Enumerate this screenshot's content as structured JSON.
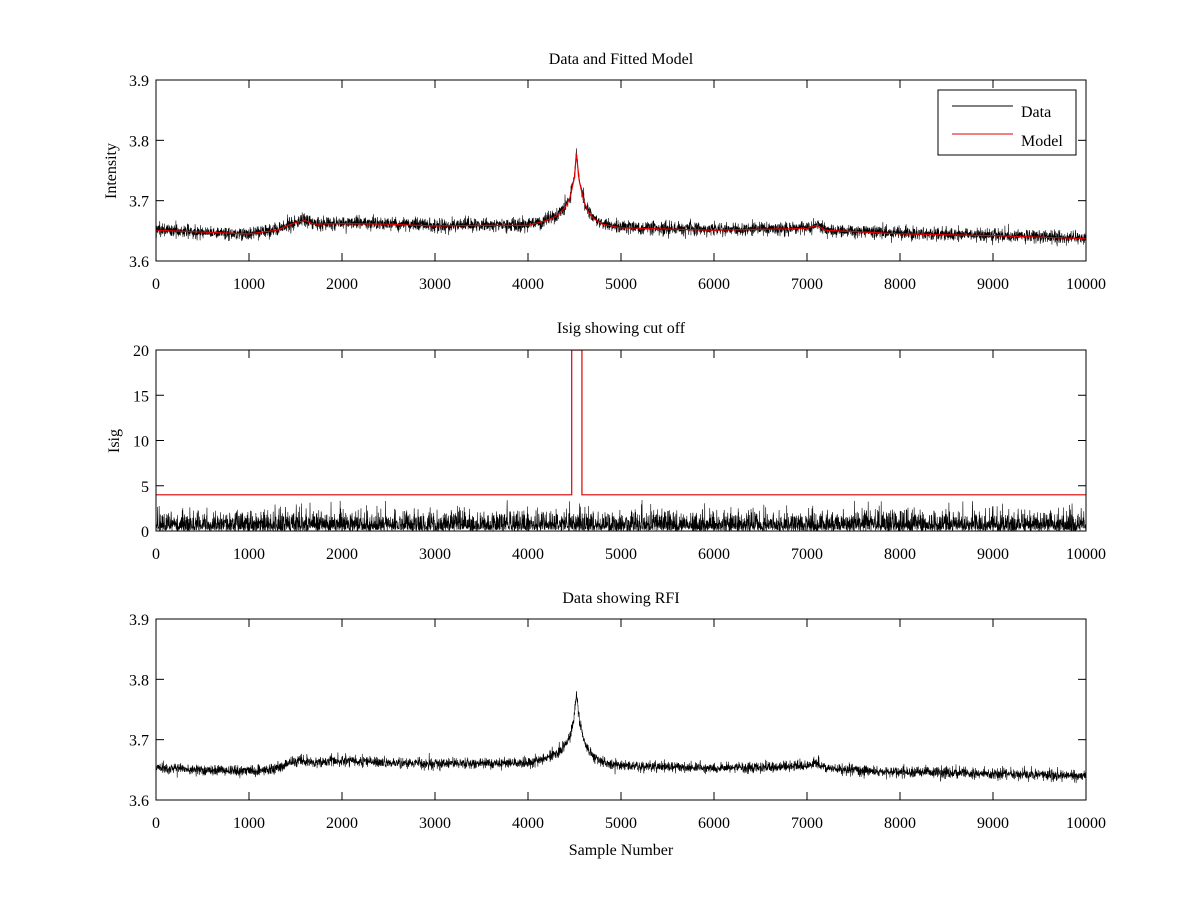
{
  "colors": {
    "data_line": "#000000",
    "model_line": "#e00000",
    "axes": "#000000",
    "background": "#ffffff"
  },
  "chart_data": [
    {
      "type": "line",
      "title": "Data and Fitted Model",
      "xlabel": "",
      "ylabel": "Intensity",
      "xlim": [
        0,
        10000
      ],
      "ylim": [
        3.6,
        3.9
      ],
      "xticks": [
        0,
        1000,
        2000,
        3000,
        4000,
        5000,
        6000,
        7000,
        8000,
        9000,
        10000
      ],
      "yticks": [
        3.6,
        3.7,
        3.8,
        3.9
      ],
      "xtick_labels": [
        "0",
        "1000",
        "2000",
        "3000",
        "4000",
        "5000",
        "6000",
        "7000",
        "8000",
        "9000",
        "10000"
      ],
      "ytick_labels": [
        "3.6",
        "3.7",
        "3.8",
        "3.9"
      ],
      "legend": {
        "placement": "top-right",
        "entries": [
          "Data",
          "Model"
        ]
      },
      "series": [
        {
          "name": "Data",
          "kind": "noisy",
          "noise_sd": 0.0055,
          "baseline_x": [
            0,
            500,
            1000,
            1300,
            1500,
            1600,
            1700,
            2000,
            2500,
            3000,
            3500,
            4000,
            4200,
            4300,
            4400,
            4450,
            4500,
            4520,
            4550,
            4600,
            4650,
            4700,
            4800,
            5000,
            6000,
            7000,
            7100,
            7200,
            8000,
            9000,
            10000
          ],
          "baseline_y": [
            3.652,
            3.648,
            3.645,
            3.652,
            3.665,
            3.668,
            3.662,
            3.663,
            3.662,
            3.659,
            3.66,
            3.66,
            3.668,
            3.675,
            3.69,
            3.705,
            3.74,
            3.78,
            3.735,
            3.7,
            3.682,
            3.672,
            3.662,
            3.656,
            3.652,
            3.655,
            3.66,
            3.652,
            3.646,
            3.643,
            3.638
          ]
        },
        {
          "name": "Model",
          "kind": "smooth",
          "x": [
            0,
            500,
            1000,
            1300,
            1500,
            1600,
            1700,
            2000,
            2500,
            3000,
            3500,
            4000,
            4200,
            4300,
            4400,
            4450,
            4500,
            4520,
            4550,
            4600,
            4650,
            4700,
            4800,
            5000,
            6000,
            7000,
            7100,
            7200,
            8000,
            9000,
            10000
          ],
          "y": [
            3.651,
            3.648,
            3.645,
            3.651,
            3.664,
            3.667,
            3.661,
            3.662,
            3.661,
            3.658,
            3.659,
            3.659,
            3.667,
            3.674,
            3.689,
            3.704,
            3.739,
            3.779,
            3.734,
            3.699,
            3.681,
            3.671,
            3.661,
            3.655,
            3.651,
            3.654,
            3.659,
            3.651,
            3.645,
            3.642,
            3.637
          ]
        }
      ]
    },
    {
      "type": "line",
      "title": "Isig showing cut off",
      "xlabel": "",
      "ylabel": "Isig",
      "xlim": [
        0,
        10000
      ],
      "ylim": [
        0,
        20
      ],
      "xticks": [
        0,
        1000,
        2000,
        3000,
        4000,
        5000,
        6000,
        7000,
        8000,
        9000,
        10000
      ],
      "yticks": [
        0,
        5,
        10,
        15,
        20
      ],
      "xtick_labels": [
        "0",
        "1000",
        "2000",
        "3000",
        "4000",
        "5000",
        "6000",
        "7000",
        "8000",
        "9000",
        "10000"
      ],
      "ytick_labels": [
        "0",
        "5",
        "10",
        "15",
        "20"
      ],
      "series": [
        {
          "name": "Isig",
          "kind": "abs-noise",
          "noise_sd": 1.0
        },
        {
          "name": "Cut off",
          "kind": "step",
          "x": [
            0,
            4470,
            4470,
            4580,
            4580,
            10000
          ],
          "y": [
            4,
            4,
            20,
            20,
            4,
            4
          ]
        }
      ]
    },
    {
      "type": "line",
      "title": "Data showing RFI",
      "xlabel": "Sample Number",
      "ylabel": "",
      "xlim": [
        0,
        10000
      ],
      "ylim": [
        3.6,
        3.9
      ],
      "xticks": [
        0,
        1000,
        2000,
        3000,
        4000,
        5000,
        6000,
        7000,
        8000,
        9000,
        10000
      ],
      "yticks": [
        3.6,
        3.7,
        3.8,
        3.9
      ],
      "xtick_labels": [
        "0",
        "1000",
        "2000",
        "3000",
        "4000",
        "5000",
        "6000",
        "7000",
        "8000",
        "9000",
        "10000"
      ],
      "ytick_labels": [
        "3.6",
        "3.7",
        "3.8",
        "3.9"
      ],
      "series": [
        {
          "name": "Data",
          "kind": "noisy",
          "noise_sd": 0.0045,
          "baseline_x": [
            0,
            500,
            1000,
            1300,
            1500,
            1600,
            1700,
            2000,
            2500,
            3000,
            3500,
            4000,
            4200,
            4300,
            4400,
            4450,
            4500,
            4520,
            4550,
            4600,
            4650,
            4700,
            4800,
            5000,
            6000,
            7000,
            7100,
            7200,
            8000,
            9000,
            10000
          ],
          "baseline_y": [
            3.654,
            3.65,
            3.647,
            3.653,
            3.664,
            3.666,
            3.662,
            3.665,
            3.662,
            3.66,
            3.661,
            3.661,
            3.669,
            3.676,
            3.69,
            3.705,
            3.74,
            3.778,
            3.735,
            3.7,
            3.682,
            3.672,
            3.663,
            3.657,
            3.653,
            3.656,
            3.662,
            3.652,
            3.647,
            3.644,
            3.64
          ]
        }
      ]
    }
  ]
}
